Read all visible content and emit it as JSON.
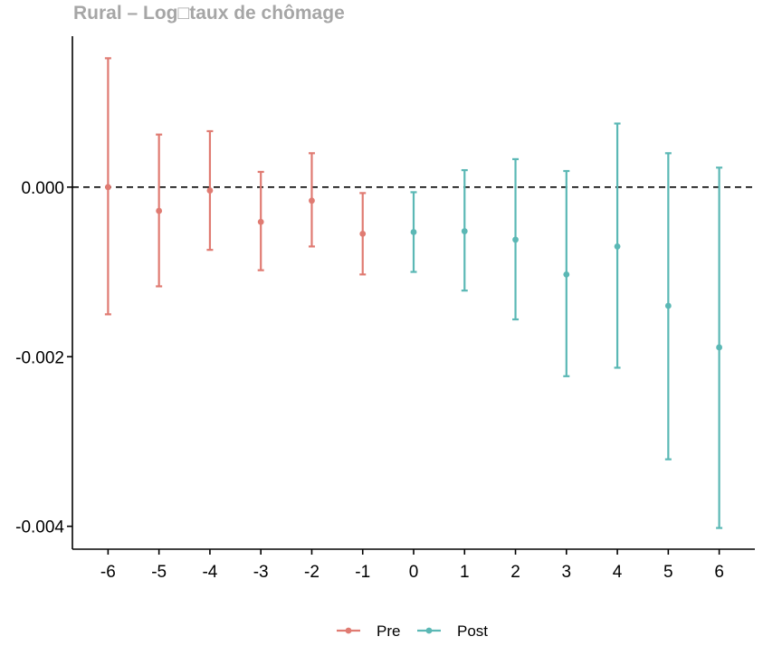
{
  "chart_data": {
    "type": "scatter",
    "title": "Rural – Log□taux de chômage",
    "xlabel": "",
    "ylabel": "",
    "x_ticks": [
      "-6",
      "-5",
      "-4",
      "-3",
      "-2",
      "-1",
      "0",
      "1",
      "2",
      "3",
      "4",
      "5",
      "6"
    ],
    "y_ticks": [
      "0.000",
      "-0.002",
      "-0.004"
    ],
    "y_tick_values": [
      0.0,
      -0.002,
      -0.004
    ],
    "xlim": [
      -6.7,
      6.7
    ],
    "ylim": [
      -0.00427,
      0.00178
    ],
    "reference_line": {
      "y": 0.0,
      "style": "dashed"
    },
    "error_bars": true,
    "grid": false,
    "legend_position": "bottom",
    "series": [
      {
        "name": "Pre",
        "color": "#E07B72",
        "x": [
          -6,
          -5,
          -4,
          -3,
          -2,
          -1
        ],
        "y": [
          0.0,
          -0.00028,
          -4e-05,
          -0.00041,
          -0.00016,
          -0.00055
        ],
        "lower": [
          -0.0015,
          -0.00117,
          -0.00074,
          -0.00098,
          -0.0007,
          -0.00103
        ],
        "upper": [
          0.00152,
          0.00062,
          0.00066,
          0.00018,
          0.0004,
          -7e-05
        ]
      },
      {
        "name": "Post",
        "color": "#5BB8B5",
        "x": [
          0,
          1,
          2,
          3,
          4,
          5,
          6
        ],
        "y": [
          -0.00053,
          -0.00052,
          -0.00062,
          -0.00103,
          -0.0007,
          -0.0014,
          -0.00189
        ],
        "lower": [
          -0.001,
          -0.00122,
          -0.00156,
          -0.00223,
          -0.00213,
          -0.00321,
          -0.00402
        ],
        "upper": [
          -6e-05,
          0.0002,
          0.00033,
          0.00019,
          0.00075,
          0.0004,
          0.00023
        ]
      }
    ]
  }
}
